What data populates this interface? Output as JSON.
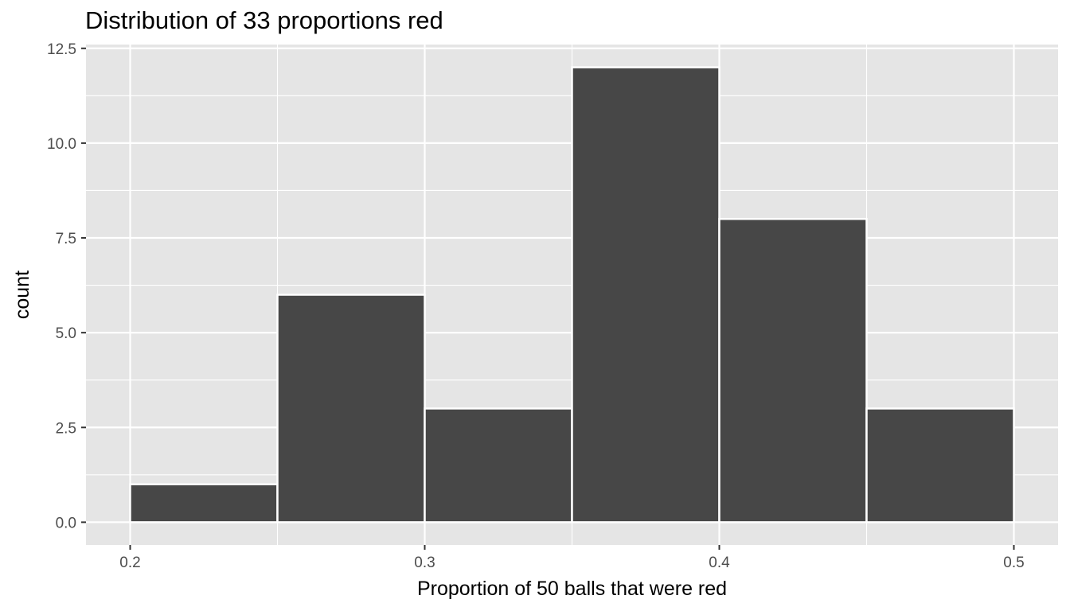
{
  "chart_data": {
    "type": "bar",
    "title": "Distribution of 33 proportions red",
    "xlabel": "Proportion of 50 balls that were red",
    "ylabel": "count",
    "bins": [
      {
        "start": 0.2,
        "end": 0.25,
        "count": 1
      },
      {
        "start": 0.25,
        "end": 0.3,
        "count": 6
      },
      {
        "start": 0.3,
        "end": 0.35,
        "count": 3
      },
      {
        "start": 0.35,
        "end": 0.4,
        "count": 12
      },
      {
        "start": 0.4,
        "end": 0.45,
        "count": 8
      },
      {
        "start": 0.45,
        "end": 0.5,
        "count": 3
      }
    ],
    "xlim": [
      0.185,
      0.515
    ],
    "ylim": [
      -0.6,
      12.6
    ],
    "x_ticks": [
      0.2,
      0.3,
      0.4,
      0.5
    ],
    "x_tick_labels": [
      "0.2",
      "0.3",
      "0.4",
      "0.5"
    ],
    "x_minor_ticks": [
      0.25,
      0.35,
      0.45
    ],
    "y_ticks": [
      0,
      2.5,
      5,
      7.5,
      10,
      12.5
    ],
    "y_tick_labels": [
      "0.0",
      "2.5",
      "5.0",
      "7.5",
      "10.0",
      "12.5"
    ],
    "y_minor_ticks": [
      1.25,
      3.75,
      6.25,
      8.75,
      11.25
    ],
    "grid": true,
    "colors": {
      "panel_background": "#e5e5e5",
      "grid": "#ffffff",
      "bar_fill": "#474747",
      "bar_outline": "#ffffff"
    }
  }
}
